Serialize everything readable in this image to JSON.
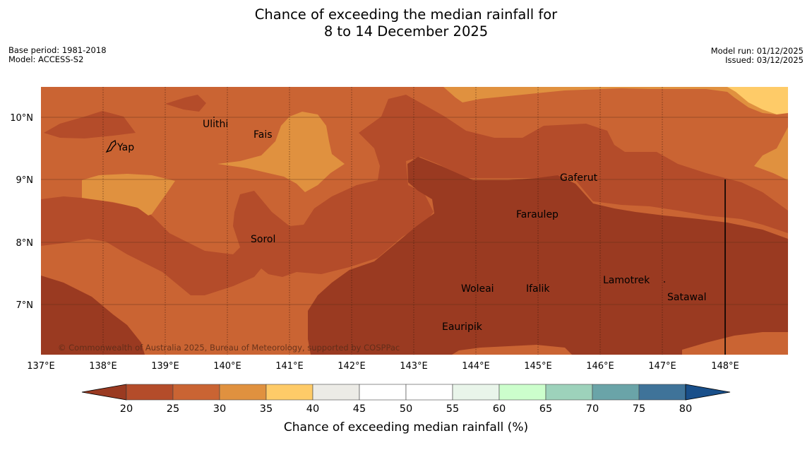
{
  "header": {
    "title_line1": "Chance of exceeding the median rainfall for",
    "title_line2": "8 to 14 December 2025",
    "base_period": "Base period: 1981-2018",
    "model": "Model: ACCESS-S2",
    "model_run": "Model run: 01/12/2025",
    "issued": "Issued: 03/12/2025"
  },
  "map": {
    "lat_labels": [
      "10°N",
      "9°N",
      "8°N",
      "7°N"
    ],
    "lon_labels": [
      "137°E",
      "138°E",
      "139°E",
      "140°E",
      "141°E",
      "142°E",
      "143°E",
      "144°E",
      "145°E",
      "146°E",
      "147°E",
      "148°E"
    ],
    "places": [
      "Ulithi",
      "Fais",
      "Yap",
      "Gaferut",
      "Faraulep",
      "Sorol",
      "Lamotrek",
      "Woleai",
      "Ifalik",
      "Satawal",
      "Eauripik"
    ],
    "copyright": "© Commonwealth of Australia 2025, Bureau of Meteorology, supported by COSPPac"
  },
  "colorbar": {
    "ticks": [
      "20",
      "25",
      "30",
      "35",
      "40",
      "45",
      "50",
      "55",
      "60",
      "65",
      "70",
      "75",
      "80"
    ],
    "colors": [
      "#9a3a21",
      "#b44c2a",
      "#ca6433",
      "#e0913f",
      "#fecb68",
      "#ecebe6",
      "#ffffff",
      "#ffffff",
      "#e9f5ea",
      "#ccfecc",
      "#9dd2bb",
      "#6aa4a8",
      "#3f7399",
      "#194f8a"
    ],
    "label": "Chance of exceeding median rainfall (%)"
  }
}
